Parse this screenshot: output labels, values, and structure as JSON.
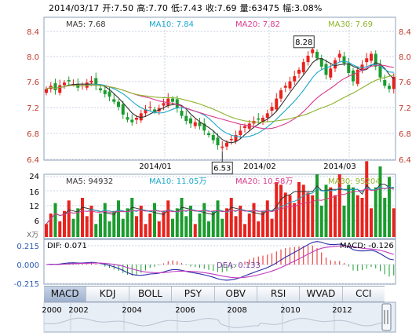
{
  "header": {
    "date": "2014/03/17",
    "open": "开:7.50",
    "high": "高:7.70",
    "low": "低:7.43",
    "close": "收:7.69",
    "volume": "量:63475",
    "change": "幅:3.08%"
  },
  "price_panel": {
    "ma_legend": [
      {
        "label": "MA5: 7.68",
        "color": "#333333"
      },
      {
        "label": "MA10: 7.84",
        "color": "#1ba7c9"
      },
      {
        "label": "MA20: 7.82",
        "color": "#d9388a"
      },
      {
        "label": "MA30: 7.69",
        "color": "#8db32a"
      }
    ],
    "y_ticks": [
      "8.4",
      "8.0",
      "7.6",
      "7.2",
      "6.8",
      "6.4"
    ],
    "x_ticks": [
      "2014/01",
      "2014/02",
      "2014/03"
    ],
    "high_marker": "8.28",
    "low_marker": "6.53"
  },
  "volume_panel": {
    "legend": [
      {
        "label": "MA5: 94932",
        "color": "#333333"
      },
      {
        "label": "MA10: 11.05万",
        "color": "#1ba7c9"
      },
      {
        "label": "MA20: 10.58万",
        "color": "#d9388a"
      },
      {
        "label": "MA30: 95204",
        "color": "#8db32a"
      }
    ],
    "y_ticks": [
      "24",
      "16",
      "12",
      "6"
    ],
    "unit": "X万"
  },
  "macd_panel": {
    "dif": "DIF: 0.071",
    "dea": "DEA: 0.133",
    "macd": "MACD: -0.126",
    "y_ticks": [
      "0.215",
      "0.000",
      "-0.215"
    ]
  },
  "indicator_tabs": [
    "MACD",
    "KDJ",
    "BOLL",
    "PSY",
    "OBV",
    "RSI",
    "WVAD",
    "CCI"
  ],
  "active_tab": "MACD",
  "timeline": {
    "years": [
      "2000",
      "2002",
      "2004",
      "2006",
      "2008",
      "2010",
      "2012"
    ]
  },
  "colors": {
    "up": "#e8221d",
    "down": "#1b9c2e",
    "grid": "#c8d2e0",
    "axis_text": "#c0392b",
    "timeline_bg": "#e8eef6"
  }
}
